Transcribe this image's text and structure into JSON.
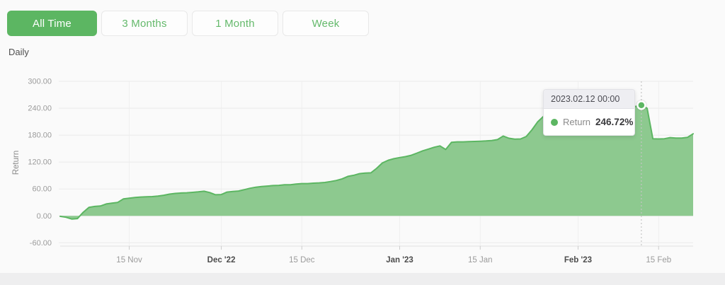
{
  "toolbar": {
    "buttons": [
      {
        "label": "All Time",
        "active": true
      },
      {
        "label": "3 Months",
        "active": false
      },
      {
        "label": "1 Month",
        "active": false
      },
      {
        "label": "Week",
        "active": false
      }
    ]
  },
  "frequency_label": "Daily",
  "tooltip": {
    "date": "2023.02.12 00:00",
    "series_label": "Return",
    "value": "246.72%"
  },
  "colors": {
    "accent_green": "#5cb662",
    "area_fill_green": "#8dc98f",
    "grid_line": "#ebebeb",
    "vertical_grid": "#f0f0f0",
    "axis_line": "#e0e0e0",
    "tick_mark": "#cccccc",
    "tick_text": "#9b9b9b",
    "tick_text_bold": "#4c4c4c",
    "hover_dash": "#c4c4c4"
  },
  "chart_data": {
    "type": "area",
    "title": "",
    "ylabel": "Return",
    "xlabel": "",
    "frequency": "daily",
    "x_start_date": "2022-11-03",
    "x_end_date": "2023-02-21",
    "ylim": [
      -60,
      300
    ],
    "grid": true,
    "legend_position": "none",
    "y_ticks": [
      {
        "label": "300.00",
        "value": 300
      },
      {
        "label": "240.00",
        "value": 240
      },
      {
        "label": "180.00",
        "value": 180
      },
      {
        "label": "120.00",
        "value": 120
      },
      {
        "label": "60.00",
        "value": 60
      },
      {
        "label": "0.00",
        "value": 0
      },
      {
        "label": "-60.00",
        "value": -60
      }
    ],
    "x_labels": [
      {
        "label": "15 Nov",
        "index": 12,
        "bold": false
      },
      {
        "label": "Dec '22",
        "index": 28,
        "bold": true
      },
      {
        "label": "15 Dec",
        "index": 42,
        "bold": false
      },
      {
        "label": "Jan '23",
        "index": 59,
        "bold": true
      },
      {
        "label": "15 Jan",
        "index": 73,
        "bold": false
      },
      {
        "label": "Feb '23",
        "index": 90,
        "bold": true
      },
      {
        "label": "15 Feb",
        "index": 104,
        "bold": false
      }
    ],
    "series": [
      {
        "name": "Return",
        "unit": "%",
        "values": [
          -1,
          -3,
          -7,
          -6,
          8,
          19,
          21,
          22,
          26.5,
          28.5,
          30,
          38,
          39.5,
          41,
          42,
          42.5,
          43,
          44,
          46,
          48.5,
          50,
          51,
          51.5,
          52.5,
          53.5,
          55,
          52,
          47,
          47.5,
          53,
          54.5,
          55.5,
          58.5,
          61.5,
          64,
          65.5,
          66.5,
          67.5,
          68,
          69.5,
          69.5,
          71,
          72,
          72,
          73,
          73.5,
          74.5,
          76.5,
          79,
          82.5,
          88,
          90.5,
          94,
          95.5,
          96,
          106,
          118,
          124,
          127.5,
          130,
          132,
          135,
          140,
          145,
          149,
          153,
          156,
          148,
          164,
          165,
          165,
          165.5,
          166,
          166.5,
          167,
          168,
          170,
          178,
          173,
          171,
          171.5,
          177,
          192,
          210,
          222,
          218,
          208,
          210,
          214,
          217,
          219,
          222,
          224,
          227,
          229,
          228,
          231,
          234,
          238,
          242,
          244,
          246.72,
          240,
          172,
          171.5,
          172,
          174.5,
          173.5,
          173.5,
          175,
          183
        ]
      }
    ],
    "hover": {
      "index": 101,
      "date": "2023.02.12 00:00",
      "value": 246.72
    }
  }
}
